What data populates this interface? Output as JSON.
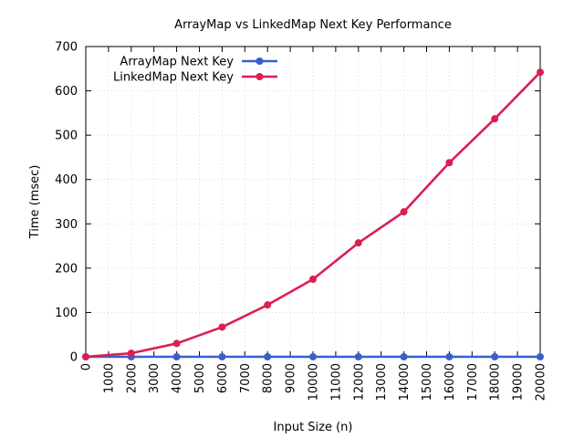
{
  "chart_data": {
    "type": "line",
    "title": "ArrayMap vs LinkedMap Next Key Performance",
    "xlabel": "Input Size (n)",
    "ylabel": "Time (msec)",
    "xlim": [
      0,
      20000
    ],
    "ylim": [
      0,
      700
    ],
    "x_ticks": [
      0,
      1000,
      2000,
      3000,
      4000,
      5000,
      6000,
      7000,
      8000,
      9000,
      10000,
      11000,
      12000,
      13000,
      14000,
      15000,
      16000,
      17000,
      18000,
      19000,
      20000
    ],
    "y_ticks": [
      0,
      100,
      200,
      300,
      400,
      500,
      600,
      700
    ],
    "grid": true,
    "legend_position": "top-left",
    "x": [
      0,
      2000,
      4000,
      6000,
      8000,
      10000,
      12000,
      14000,
      16000,
      18000,
      20000
    ],
    "series": [
      {
        "name": "ArrayMap Next Key",
        "color": "#3a5fcd",
        "values": [
          0,
          0,
          0,
          0,
          0,
          0,
          0,
          0,
          0,
          0,
          0
        ]
      },
      {
        "name": "LinkedMap Next Key",
        "color": "#dc1e50",
        "values": [
          0,
          8,
          30,
          67,
          117,
          175,
          257,
          327,
          438,
          537,
          642
        ]
      }
    ]
  }
}
